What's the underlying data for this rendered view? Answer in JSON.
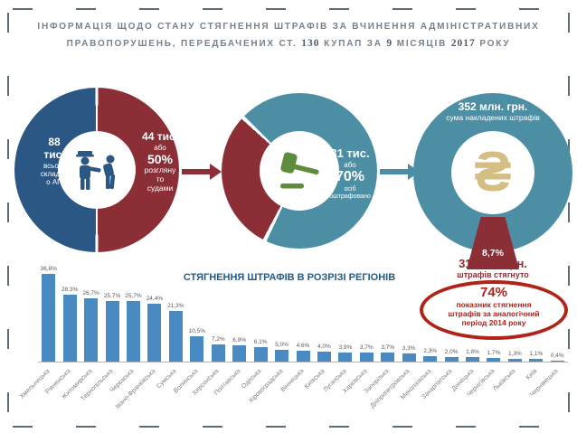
{
  "colors": {
    "navy": "#2A5784",
    "maroon": "#8C2E36",
    "teal": "#4C8FA4",
    "gold": "#D5BE84",
    "accent_red": "#B02318",
    "title_gray": "#76828E",
    "chart_title_navy": "#1F5C8B",
    "frame_dash": "#5D6B77",
    "gavel_green": "#5E8C3A"
  },
  "title": {
    "part1": "ІНФОРМАЦІЯ ЩОДО СТАНУ СТЯГНЕННЯ ШТРАФІВ ЗА ВЧИНЕННЯ АДМІНІСТРАТИВНИХ ПРАВОПОРУШЕНЬ, ПЕРЕДБАЧЕНИХ СТ.",
    "num1": "130",
    "part2": "КУПАП ЗА",
    "num2": "9",
    "part3": "МІСЯЦІВ",
    "num3": "2017",
    "part4": "РОКУ"
  },
  "donut1": {
    "left_value": "88",
    "left_unit": "тис.",
    "left_lines": "всього\nскладен\nо АП",
    "right_value": "44 тис.",
    "right_conj": "або",
    "right_pct": "50%",
    "right_lines": "розгляну\nто\nсудами",
    "icon": "police-officer-and-citizen-icon"
  },
  "donut2": {
    "value": "31 тис.",
    "conj": "або",
    "pct": "70%",
    "lines": "осіб\nоштрафовано",
    "icon": "gavel-icon"
  },
  "donut3": {
    "top_value": "352 млн. грн.",
    "top_label": "сума накладених штрафів",
    "currency_symbol": "₴",
    "wedge_pct": "8,7%",
    "bottom_value": "31 млн. грн.",
    "bottom_label": "штрафів стягнуто",
    "oval_pct": "74%",
    "oval_line1": "показник стягнення",
    "oval_line2": "штрафів за аналогічний",
    "oval_line3": "період 2014 року"
  },
  "chart_data": {
    "type": "bar",
    "title": "СТЯГНЕННЯ ШТРАФІВ В РОЗРІЗІ РЕГІОНІВ",
    "categories": [
      "Хмельницька",
      "Рівненська",
      "Житомирська",
      "Тернопільська",
      "Черкаська",
      "Івано-Франківська",
      "Сумська",
      "Волинська",
      "Херсонська",
      "Полтавська",
      "Одеська",
      "Кіровоградська",
      "Вінницька",
      "Київська",
      "Луганська",
      "Харківська",
      "Запорізька",
      "Дніпропетровська",
      "Миколаївська",
      "Закарпатська",
      "Донецька",
      "Чернігівська",
      "Львівська",
      "Київ",
      "Чернівецька"
    ],
    "values": [
      36.8,
      28.3,
      26.7,
      25.7,
      25.7,
      24.4,
      21.3,
      10.5,
      7.2,
      6.9,
      6.1,
      5.0,
      4.6,
      4.0,
      3.9,
      3.7,
      3.7,
      3.3,
      2.3,
      2.0,
      1.8,
      1.7,
      1.3,
      1.1,
      0.4
    ],
    "labels": [
      "36,8%",
      "28,3%",
      "26,7%",
      "25,7%",
      "25,7%",
      "24,4%",
      "21,3%",
      "10,5%",
      "7,2%",
      "6,9%",
      "6,1%",
      "5,0%",
      "4,6%",
      "4,0%",
      "3,9%",
      "3,7%",
      "3,7%",
      "3,3%",
      "2,3%",
      "2,0%",
      "1,8%",
      "1,7%",
      "1,3%",
      "1,1%",
      "0,4%"
    ],
    "xlabel": "",
    "ylabel": "",
    "ylim": [
      0,
      40
    ],
    "grid": false,
    "legend": false,
    "bar_color": "#4A8AC2"
  }
}
